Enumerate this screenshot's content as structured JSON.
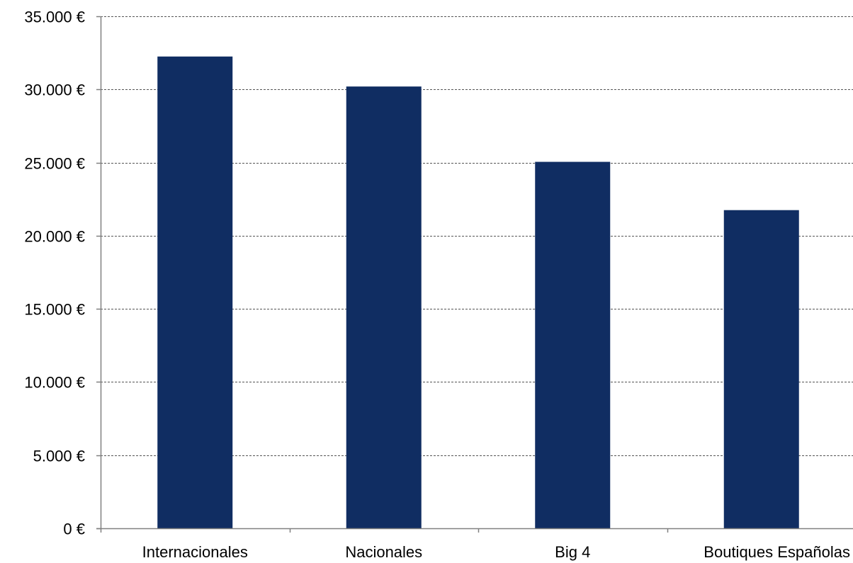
{
  "chart_data": {
    "type": "bar",
    "categories": [
      "Internacionales",
      "Nacionales",
      "Big 4",
      "Boutiques Españolas"
    ],
    "values": [
      32250,
      30200,
      25050,
      21750
    ],
    "ylim": [
      0,
      35000
    ],
    "yticks": [
      0,
      5000,
      10000,
      15000,
      20000,
      25000,
      30000,
      35000
    ],
    "ytick_labels": [
      "0 €",
      "5.000 €",
      "10.000 €",
      "15.000 €",
      "20.000 €",
      "25.000 €",
      "30.000 €",
      "35.000 €"
    ],
    "grid": true,
    "bar_color": "#102D62",
    "grid_color": "#555555",
    "axis_color": "#808080",
    "title": "",
    "xlabel": "",
    "ylabel": ""
  }
}
